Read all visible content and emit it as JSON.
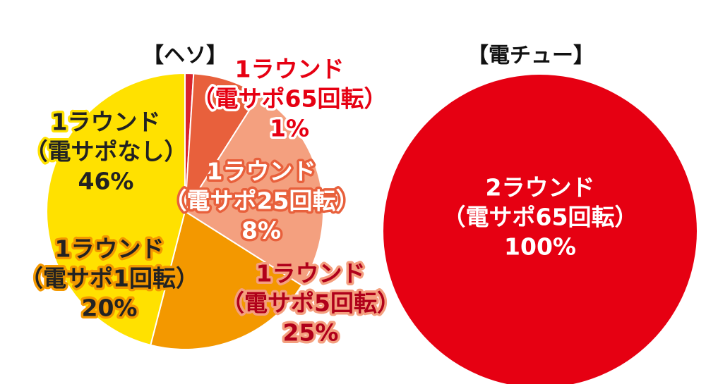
{
  "chart_data": [
    {
      "type": "pie",
      "title": "【ヘソ】",
      "categories": [
        [
          "1ラウンド",
          "（電サポ65回転）"
        ],
        [
          "1ラウンド",
          "（電サポ25回転）"
        ],
        [
          "1ラウンド",
          "（電サポ5回転）"
        ],
        [
          "1ラウンド",
          "（電サポ1回転）"
        ],
        [
          "1ラウンド",
          "（電サポなし）"
        ]
      ],
      "values": [
        1,
        8,
        25,
        20,
        46
      ],
      "value_labels": [
        "1%",
        "8%",
        "25%",
        "20%",
        "46%"
      ],
      "colors": [
        "#d9232c",
        "#e8603c",
        "#f4a07f",
        "#f39800",
        "#ffe100"
      ]
    },
    {
      "type": "pie",
      "title": "【電チュー】",
      "categories": [
        [
          "2ラウンド",
          "（電サポ65回転）"
        ]
      ],
      "values": [
        100
      ],
      "value_labels": [
        "100%"
      ],
      "colors": [
        "#e60012"
      ]
    }
  ]
}
